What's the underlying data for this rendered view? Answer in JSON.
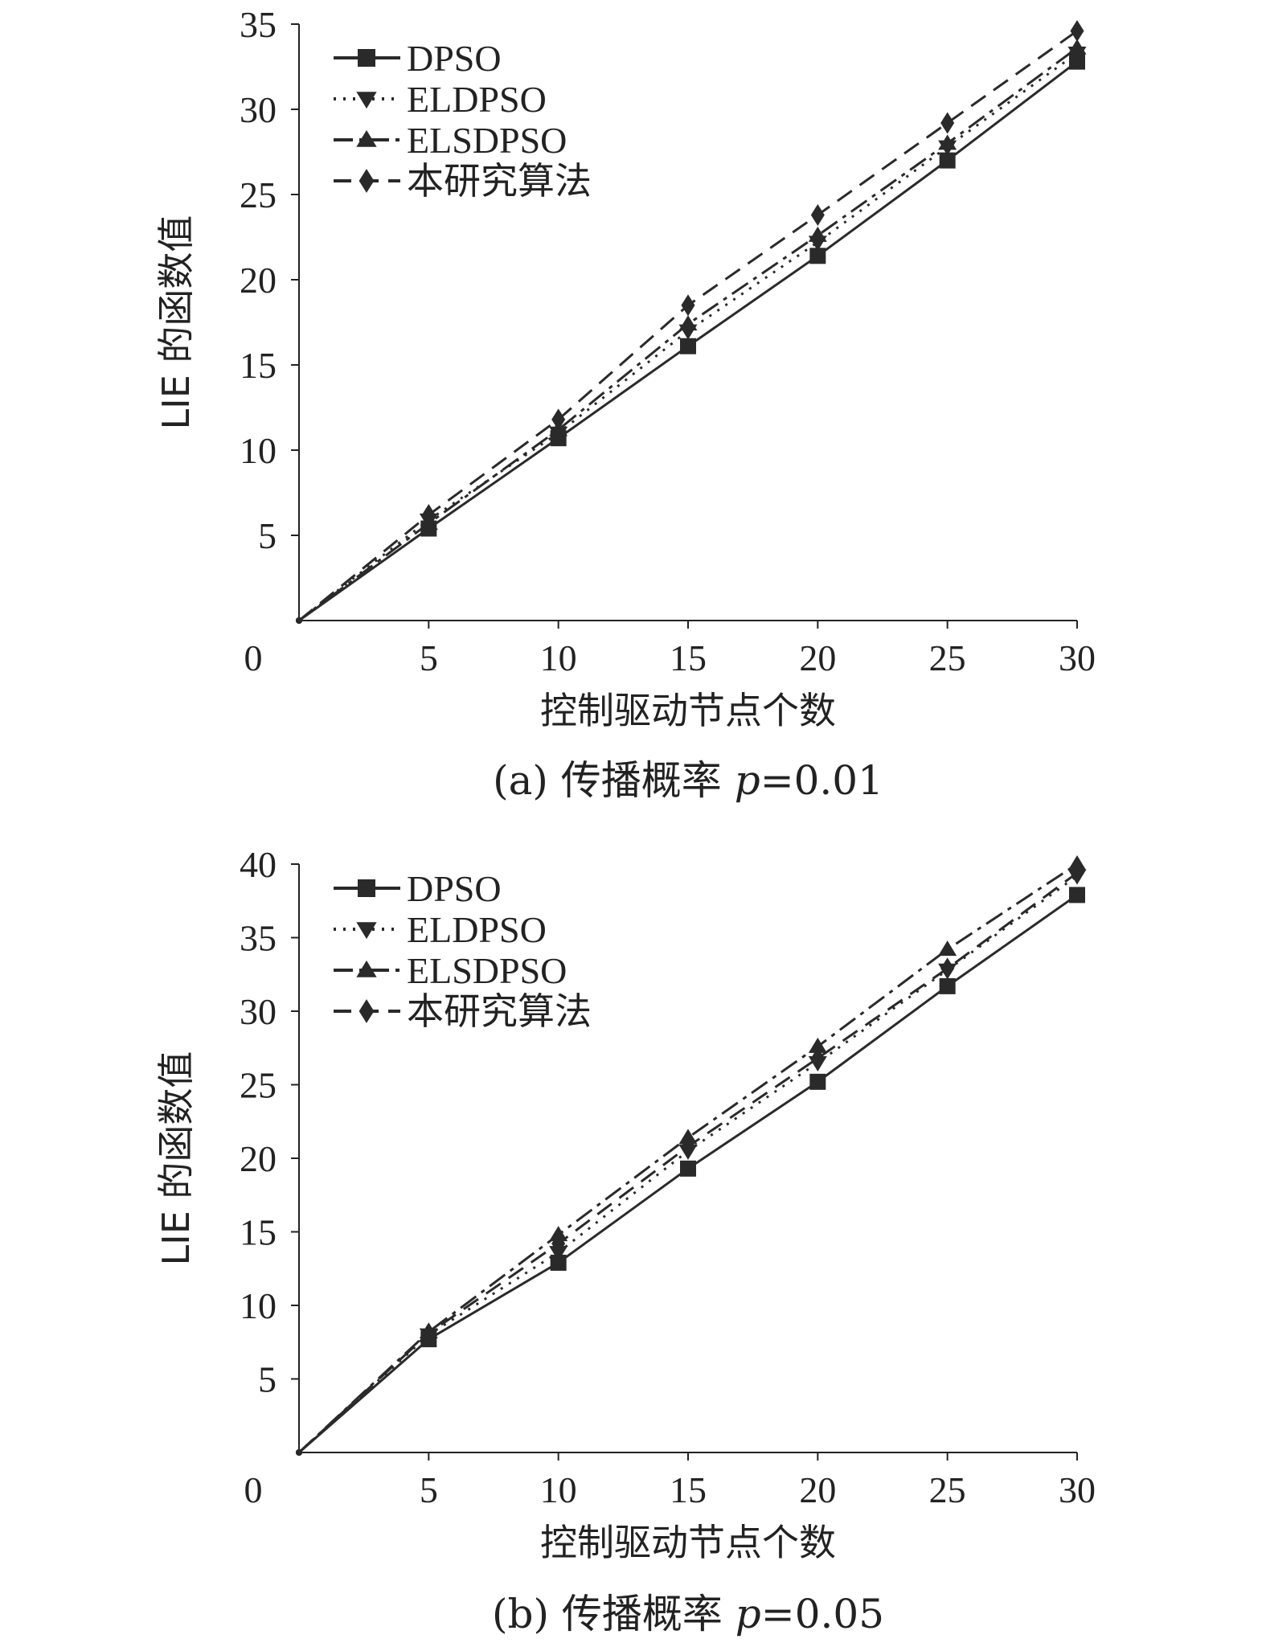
{
  "chart_data": [
    {
      "type": "line",
      "caption": {
        "prefix": "(a) 传播概率 ",
        "var": "p",
        "suffix": "=0.01"
      },
      "xlabel": "控制驱动节点个数",
      "ylabel": "LIE 的函数值",
      "x_origin_label": "0",
      "x": [
        0,
        5,
        10,
        15,
        20,
        25,
        30
      ],
      "xticks": [
        5,
        10,
        15,
        20,
        25,
        30
      ],
      "yticks": [
        5,
        10,
        15,
        20,
        25,
        30,
        35
      ],
      "xlim": [
        0,
        30
      ],
      "ylim": [
        0,
        35
      ],
      "grid": false,
      "legend_position": "top-left",
      "series": [
        {
          "name": "DPSO",
          "values": [
            0,
            5.4,
            10.7,
            16.1,
            21.4,
            27.0,
            32.8
          ]
        },
        {
          "name": "ELDPSO",
          "values": [
            0,
            5.9,
            11.0,
            17.0,
            22.2,
            27.8,
            33.3
          ]
        },
        {
          "name": "ELSDPSO",
          "values": [
            0,
            5.7,
            11.2,
            17.4,
            22.6,
            28.0,
            33.6
          ]
        },
        {
          "name": "本研究算法",
          "values": [
            0,
            6.2,
            11.8,
            18.5,
            23.8,
            29.2,
            34.6
          ]
        }
      ]
    },
    {
      "type": "line",
      "caption": {
        "prefix": "(b) 传播概率 ",
        "var": "p",
        "suffix": "=0.05"
      },
      "xlabel": "控制驱动节点个数",
      "ylabel": "LIE 的函数值",
      "x_origin_label": "0",
      "x": [
        0,
        5,
        10,
        15,
        20,
        25,
        30
      ],
      "xticks": [
        5,
        10,
        15,
        20,
        25,
        30
      ],
      "yticks": [
        5,
        10,
        15,
        20,
        25,
        30,
        35,
        40
      ],
      "xlim": [
        0,
        30
      ],
      "ylim": [
        0,
        40
      ],
      "grid": false,
      "legend_position": "top-left",
      "series": [
        {
          "name": "DPSO",
          "values": [
            0,
            7.7,
            12.9,
            19.3,
            25.2,
            31.7,
            37.9
          ]
        },
        {
          "name": "ELDPSO",
          "values": [
            0,
            8.0,
            13.6,
            20.5,
            26.5,
            32.8,
            39.2
          ]
        },
        {
          "name": "ELSDPSO",
          "values": [
            0,
            8.2,
            14.8,
            21.4,
            27.6,
            34.2,
            40.0
          ]
        },
        {
          "name": "本研究算法",
          "values": [
            0,
            8.1,
            14.2,
            20.8,
            26.8,
            32.9,
            39.4
          ]
        }
      ]
    }
  ],
  "style": {
    "line_color": "#2a2a2a",
    "axis_color": "#222222",
    "markers": [
      "square-icon",
      "triangle-down-icon",
      "triangle-up-icon",
      "diamond-icon"
    ],
    "dash_styles": [
      "solid",
      "dotted",
      "dash-dot",
      "dashed"
    ]
  }
}
